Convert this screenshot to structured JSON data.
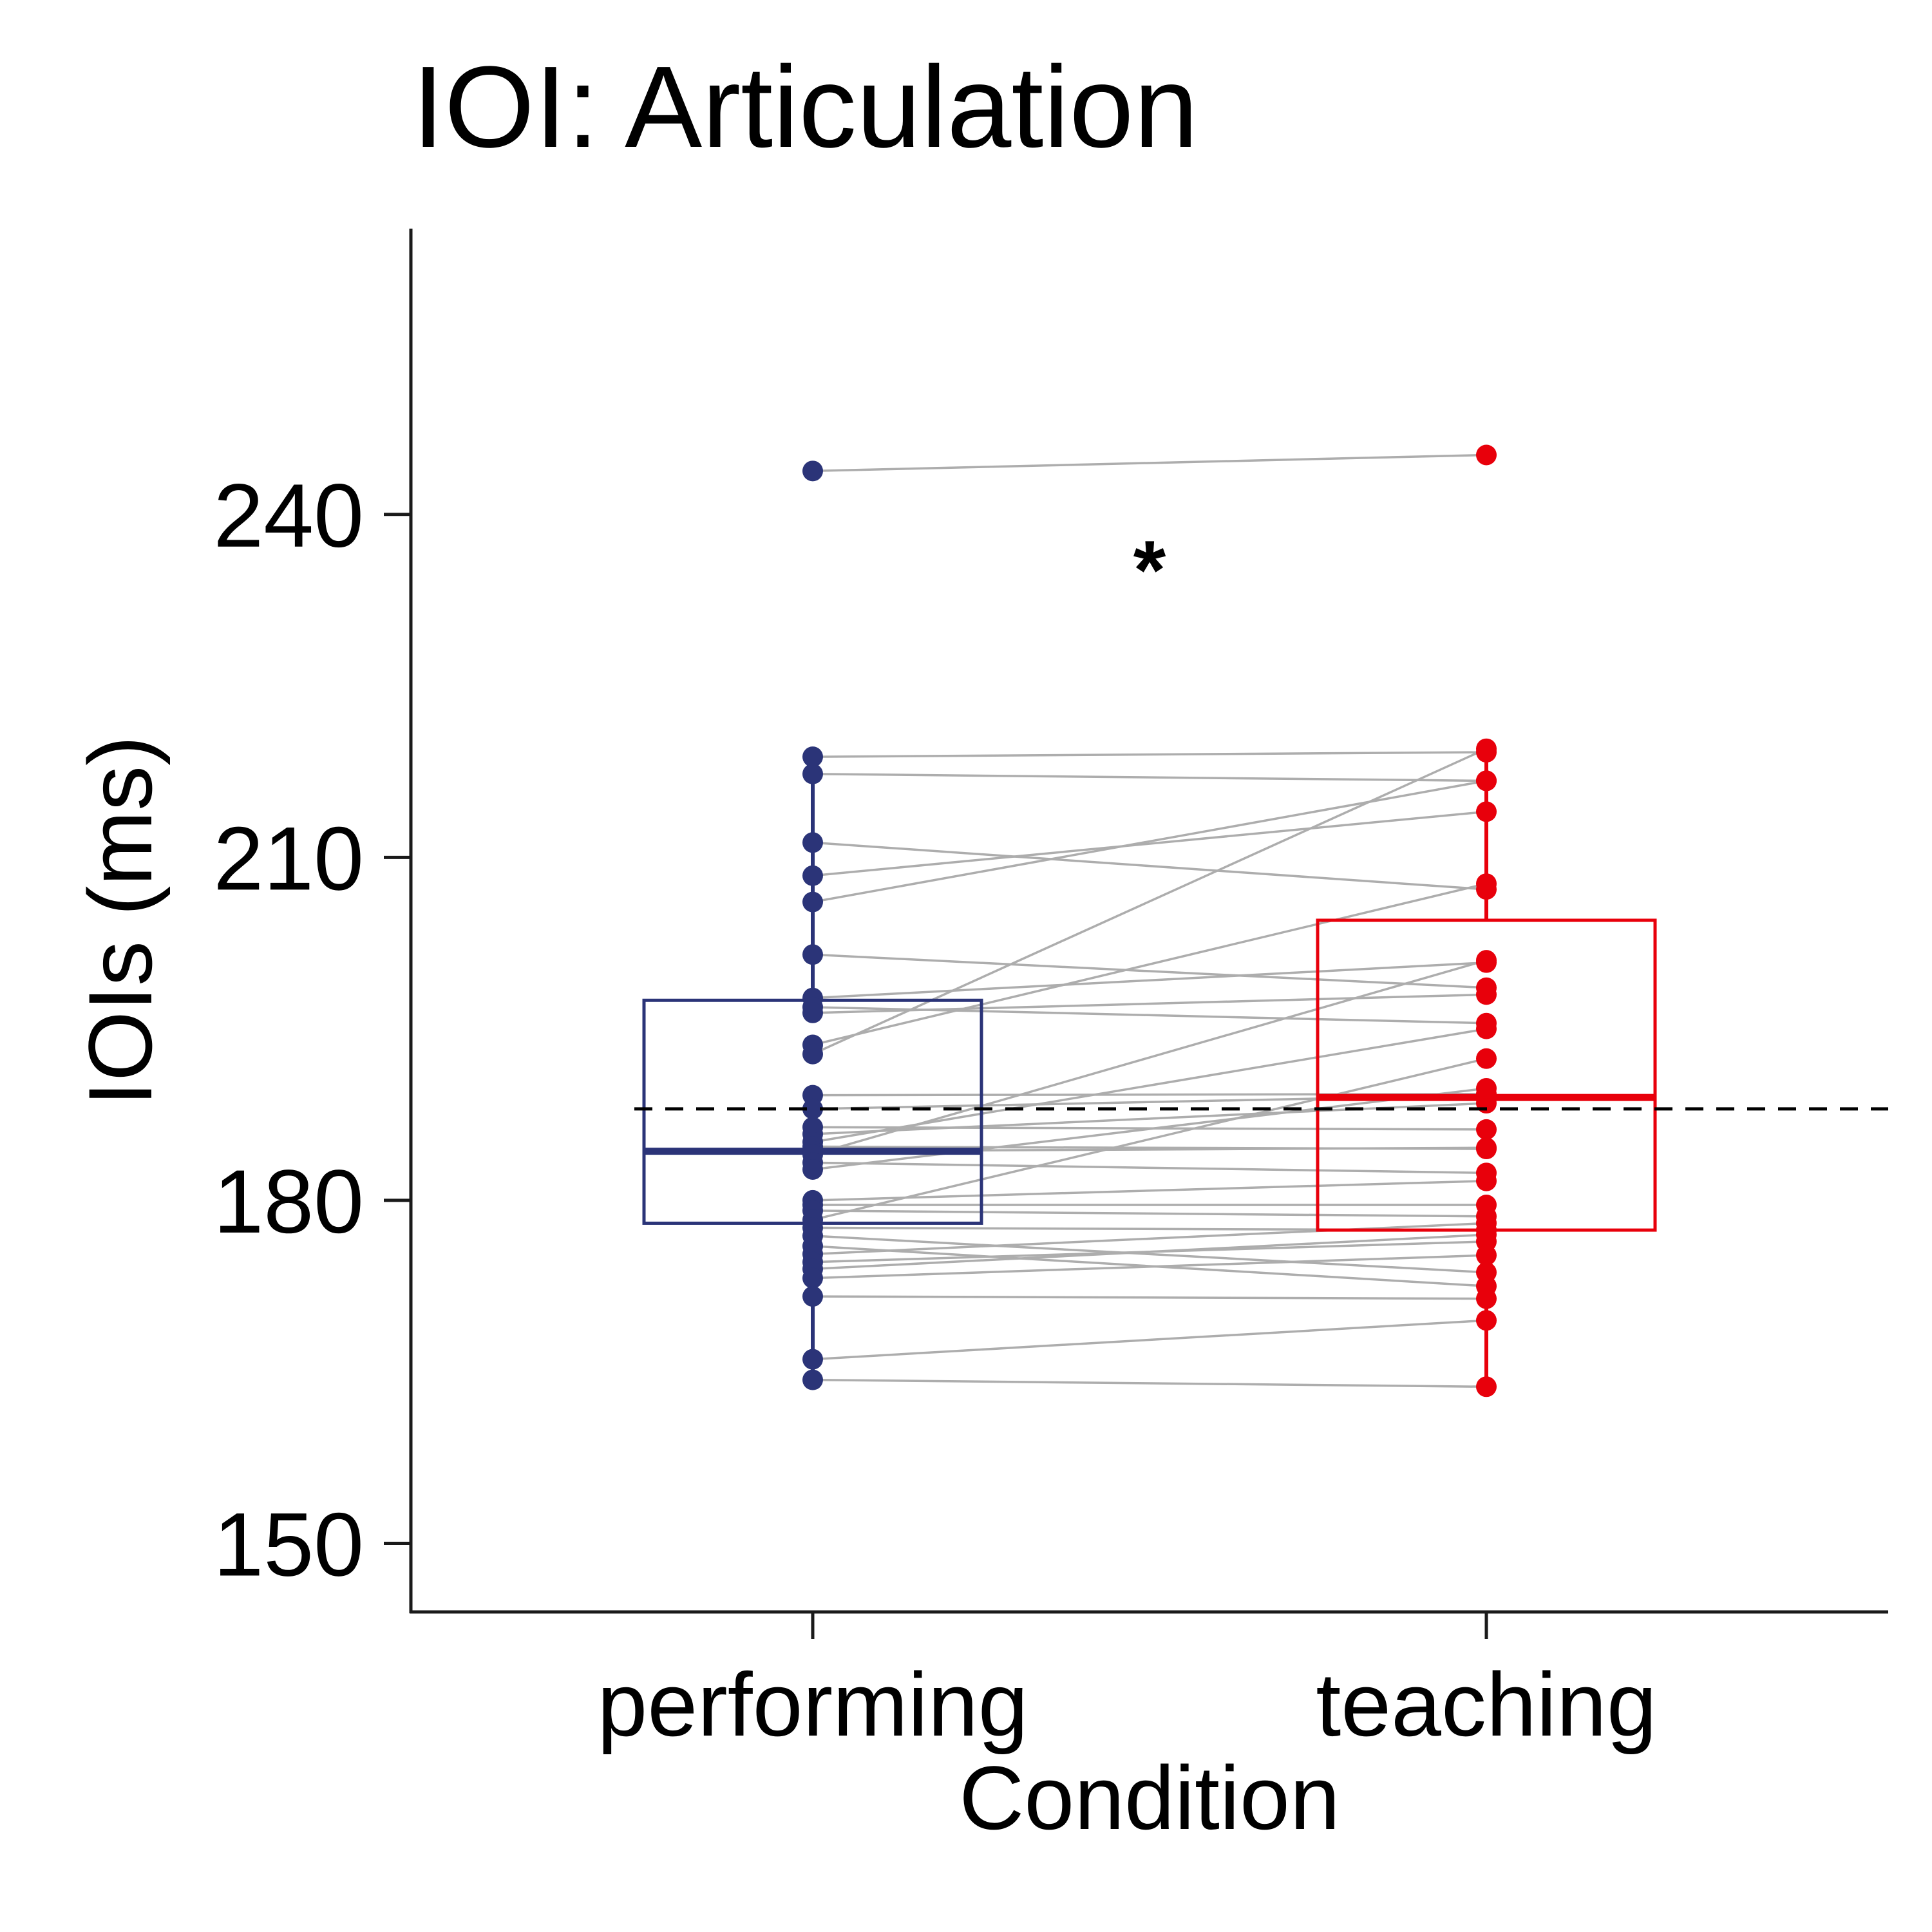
{
  "chart_data": {
    "type": "box",
    "title": "IOI: Articulation",
    "xlabel": "Condition",
    "ylabel": "IOIs (ms)",
    "ylim": [
      144,
      265
    ],
    "yticks": [
      150,
      180,
      210,
      240
    ],
    "categories": [
      "performing",
      "teaching"
    ],
    "colors": {
      "performing": "#2b3478",
      "teaching": "#e8000b",
      "pair_lines": "#adadad"
    },
    "reference_line": {
      "y": 188,
      "style": "dashed"
    },
    "annotation": {
      "text": "*",
      "x": 1.5,
      "y": 236
    },
    "boxes": [
      {
        "category": "performing",
        "q1": 178.0,
        "median": 184.3,
        "q3": 197.5,
        "whisker_low": 164.3,
        "whisker_high": 218.8
      },
      {
        "category": "teaching",
        "q1": 177.4,
        "median": 189.0,
        "q3": 204.5,
        "whisker_low": 163.7,
        "whisker_high": 219.5
      }
    ],
    "pairs": [
      {
        "performing": 243.8,
        "teaching": 245.2
      },
      {
        "performing": 218.8,
        "teaching": 219.2
      },
      {
        "performing": 217.3,
        "teaching": 216.7
      },
      {
        "performing": 211.3,
        "teaching": 207.2
      },
      {
        "performing": 208.4,
        "teaching": 214.0
      },
      {
        "performing": 206.1,
        "teaching": 216.7
      },
      {
        "performing": 201.5,
        "teaching": 198.6
      },
      {
        "performing": 197.7,
        "teaching": 200.8
      },
      {
        "performing": 196.9,
        "teaching": 195.5
      },
      {
        "performing": 196.4,
        "teaching": 198.0
      },
      {
        "performing": 193.6,
        "teaching": 207.7
      },
      {
        "performing": 192.8,
        "teaching": 219.5
      },
      {
        "performing": 189.2,
        "teaching": 189.3
      },
      {
        "performing": 188.0,
        "teaching": 189.2
      },
      {
        "performing": 186.4,
        "teaching": 186.2
      },
      {
        "performing": 185.8,
        "teaching": 188.5
      },
      {
        "performing": 185.1,
        "teaching": 195.0
      },
      {
        "performing": 184.7,
        "teaching": 184.5
      },
      {
        "performing": 184.3,
        "teaching": 184.6
      },
      {
        "performing": 184.0,
        "teaching": 201.0
      },
      {
        "performing": 183.3,
        "teaching": 182.4
      },
      {
        "performing": 182.7,
        "teaching": 189.8
      },
      {
        "performing": 180.0,
        "teaching": 181.7
      },
      {
        "performing": 179.6,
        "teaching": 179.6
      },
      {
        "performing": 179.1,
        "teaching": 178.6
      },
      {
        "performing": 178.3,
        "teaching": 192.4
      },
      {
        "performing": 177.6,
        "teaching": 177.4
      },
      {
        "performing": 176.9,
        "teaching": 173.7
      },
      {
        "performing": 176.0,
        "teaching": 172.5
      },
      {
        "performing": 175.3,
        "teaching": 178.0
      },
      {
        "performing": 174.6,
        "teaching": 176.4
      },
      {
        "performing": 174.0,
        "teaching": 177.0
      },
      {
        "performing": 173.2,
        "teaching": 175.2
      },
      {
        "performing": 171.6,
        "teaching": 171.4
      },
      {
        "performing": 166.1,
        "teaching": 169.5
      },
      {
        "performing": 164.3,
        "teaching": 163.7
      }
    ]
  }
}
